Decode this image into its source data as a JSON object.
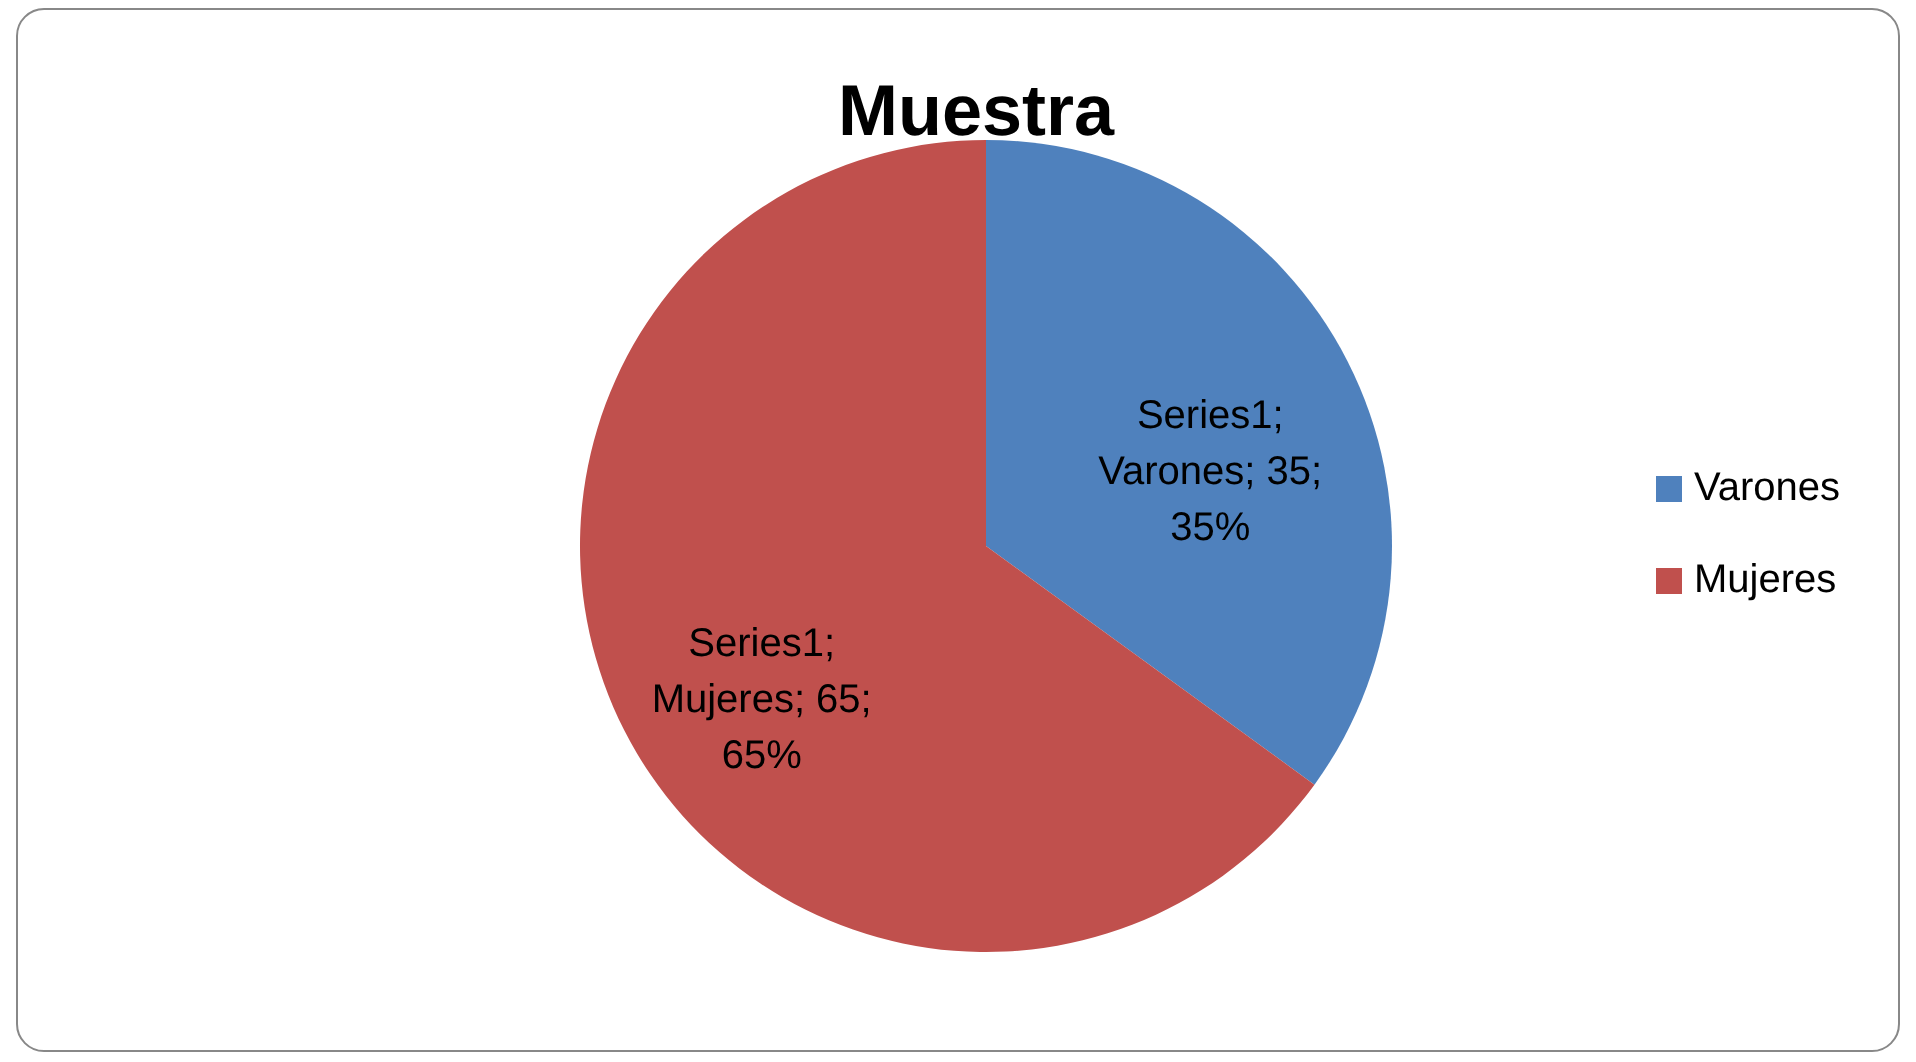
{
  "chart_data": {
    "type": "pie",
    "title": "Muestra",
    "categories": [
      "Varones",
      "Mujeres"
    ],
    "series": [
      {
        "values": [
          35,
          65
        ],
        "value_labels": [
          "Series1; Varones; 35; 35%",
          "Series1; Mujeres; 65; 65%"
        ]
      }
    ],
    "colors": [
      "#4f81bd",
      "#c0504d"
    ],
    "legend": "right"
  }
}
